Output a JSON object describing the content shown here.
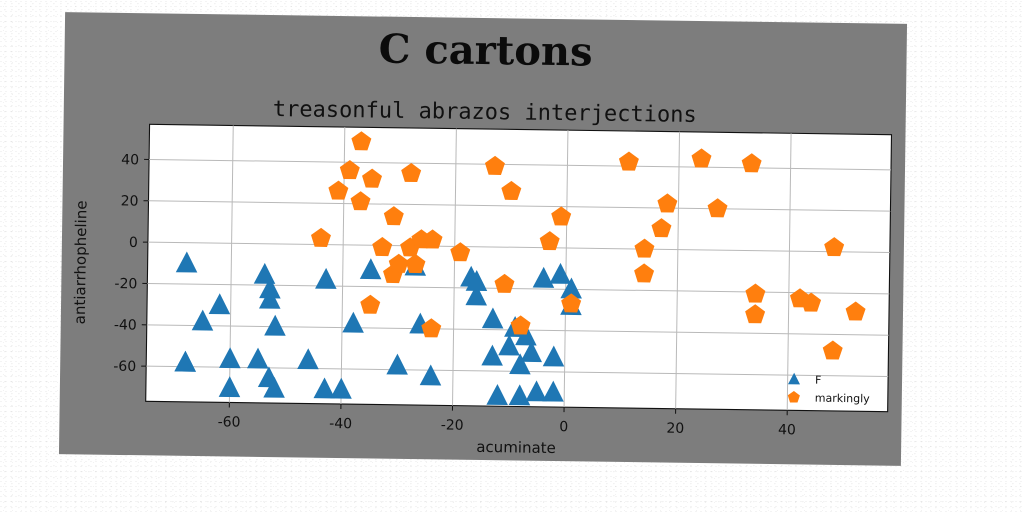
{
  "chart_data": {
    "type": "scatter",
    "title": "C cartons",
    "subtitle": "treasonful abrazos interjections",
    "xlabel": "acuminate",
    "ylabel": "antiarrhopheline",
    "xlim": [
      -75,
      58
    ],
    "ylim": [
      -77,
      57
    ],
    "xticks": [
      -60,
      -40,
      -20,
      0,
      20,
      40
    ],
    "yticks": [
      -60,
      -40,
      -20,
      0,
      20,
      40
    ],
    "grid": true,
    "legend_position": "bottom-right",
    "series": [
      {
        "name": "F",
        "marker": "triangle",
        "color": "#1f77b4",
        "points": [
          [
            -68,
            -10
          ],
          [
            -65,
            -38
          ],
          [
            -62,
            -30
          ],
          [
            -60,
            -56
          ],
          [
            -60,
            -70
          ],
          [
            -55,
            -56
          ],
          [
            -54,
            -15
          ],
          [
            -53,
            -22
          ],
          [
            -53,
            -27
          ],
          [
            -53,
            -65
          ],
          [
            -52,
            -70
          ],
          [
            -52,
            -40
          ],
          [
            -46,
            -56
          ],
          [
            -43,
            -70
          ],
          [
            -43,
            -17
          ],
          [
            -40,
            -70
          ],
          [
            -38,
            -38
          ],
          [
            -35,
            -12
          ],
          [
            -30,
            -58
          ],
          [
            -27,
            -10
          ],
          [
            -26,
            -38
          ],
          [
            -24,
            -63
          ],
          [
            -17,
            -15
          ],
          [
            -16,
            -24
          ],
          [
            -16,
            -17
          ],
          [
            -13,
            -35
          ],
          [
            -13,
            -53
          ],
          [
            -12,
            -72
          ],
          [
            -10,
            -48
          ],
          [
            -9,
            -39
          ],
          [
            -8,
            -57
          ],
          [
            -8,
            -72
          ],
          [
            -7,
            -43
          ],
          [
            -6,
            -51
          ],
          [
            -5,
            -70
          ],
          [
            -4,
            -15
          ],
          [
            -2,
            -53
          ],
          [
            -2,
            -70
          ],
          [
            -1,
            -13
          ],
          [
            1,
            -20
          ],
          [
            1,
            -28
          ],
          [
            -68,
            -58
          ],
          [
            -68,
            -58
          ]
        ]
      },
      {
        "name": "markingly",
        "marker": "pentagon",
        "color": "#ff7f0e",
        "points": [
          [
            -44,
            3
          ],
          [
            -41,
            26
          ],
          [
            -39,
            36
          ],
          [
            -37,
            50
          ],
          [
            -37,
            21
          ],
          [
            -35,
            32
          ],
          [
            -35,
            -29
          ],
          [
            -33,
            -1
          ],
          [
            -31,
            -14
          ],
          [
            -31,
            14
          ],
          [
            -30,
            -9
          ],
          [
            -28,
            35
          ],
          [
            -28,
            -1
          ],
          [
            -27,
            -9
          ],
          [
            -26,
            3
          ],
          [
            -24,
            3
          ],
          [
            -24,
            -40
          ],
          [
            -19,
            -3
          ],
          [
            -13,
            39
          ],
          [
            -11,
            -18
          ],
          [
            -10,
            27
          ],
          [
            -8,
            -38
          ],
          [
            -3,
            3
          ],
          [
            -1,
            15
          ],
          [
            1,
            -27
          ],
          [
            11,
            42
          ],
          [
            14,
            0
          ],
          [
            14,
            -12
          ],
          [
            17,
            10
          ],
          [
            18,
            22
          ],
          [
            24,
            44
          ],
          [
            27,
            20
          ],
          [
            33,
            42
          ],
          [
            34,
            -21
          ],
          [
            34,
            -31
          ],
          [
            42,
            -23
          ],
          [
            44,
            -25
          ],
          [
            48,
            2
          ],
          [
            48,
            -48
          ],
          [
            52,
            -29
          ]
        ]
      }
    ]
  }
}
